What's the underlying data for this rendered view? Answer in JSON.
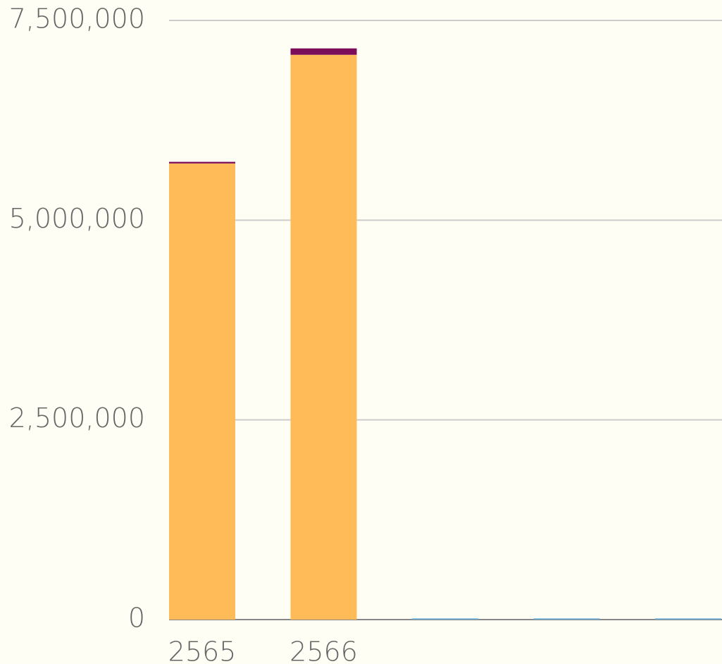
{
  "chart_data": {
    "type": "stacked_bar",
    "categories": [
      "2565",
      "2566",
      null,
      null,
      null
    ],
    "series": [
      {
        "color": "#ffbb58",
        "values": [
          5710000,
          7070000,
          null,
          null,
          null
        ]
      },
      {
        "color": "#7b0d5a",
        "values": [
          20000,
          80000,
          null,
          null,
          null
        ]
      },
      {
        "color": "#6aaed6",
        "values": [
          null,
          null,
          15000,
          15000,
          15000
        ]
      }
    ],
    "ylim": [
      0,
      7500000
    ],
    "yticks": [
      0,
      {
        "value": 2500000,
        "label": "2,500,000"
      },
      {
        "value": 5000000,
        "label": "5,000,000"
      },
      {
        "value": 7500000,
        "label": "7,500,000"
      }
    ],
    "grid": true
  }
}
